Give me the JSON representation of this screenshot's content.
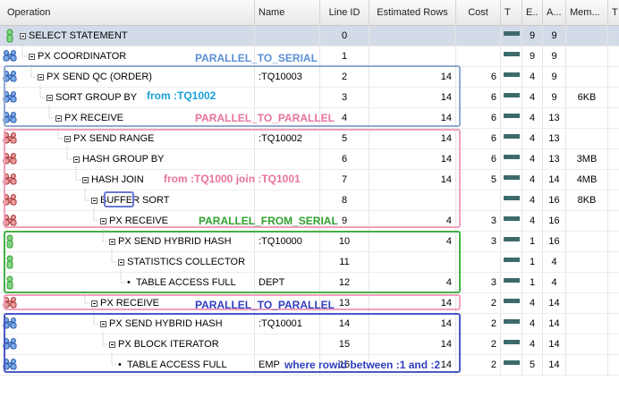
{
  "columns": {
    "operation": "Operation",
    "name": "Name",
    "line_id": "Line ID",
    "est_rows": "Estimated Rows",
    "cost": "Cost",
    "t": "T",
    "e": "E..",
    "a": "A...",
    "mem": "Mem...",
    "t2": "T"
  },
  "rows": [
    {
      "op": "SELECT STATEMENT",
      "name": "",
      "line": "0",
      "est": "",
      "cost": "",
      "bar": true,
      "e": "9",
      "a": "9",
      "mem": "",
      "icon": "green-single-icon"
    },
    {
      "op": "PX COORDINATOR",
      "name": "",
      "line": "1",
      "est": "",
      "cost": "",
      "bar": true,
      "e": "9",
      "a": "9",
      "mem": "",
      "icon": "blue-group-icon"
    },
    {
      "op": "PX SEND QC (ORDER)",
      "name": ":TQ10003",
      "line": "2",
      "est": "14",
      "cost": "6",
      "bar": true,
      "e": "4",
      "a": "9",
      "mem": "",
      "icon": "blue-group-icon"
    },
    {
      "op": "SORT GROUP BY",
      "name": "",
      "line": "3",
      "est": "14",
      "cost": "6",
      "bar": true,
      "e": "4",
      "a": "9",
      "mem": "6KB",
      "icon": "blue-group-icon"
    },
    {
      "op": "PX RECEIVE",
      "name": "",
      "line": "4",
      "est": "14",
      "cost": "6",
      "bar": true,
      "e": "4",
      "a": "13",
      "mem": "",
      "icon": "blue-group-icon"
    },
    {
      "op": "PX SEND RANGE",
      "name": ":TQ10002",
      "line": "5",
      "est": "14",
      "cost": "6",
      "bar": true,
      "e": "4",
      "a": "13",
      "mem": "",
      "icon": "red-group-icon"
    },
    {
      "op": "HASH GROUP BY",
      "name": "",
      "line": "6",
      "est": "14",
      "cost": "6",
      "bar": true,
      "e": "4",
      "a": "13",
      "mem": "3MB",
      "icon": "red-group-icon"
    },
    {
      "op": "HASH JOIN",
      "name": "",
      "line": "7",
      "est": "14",
      "cost": "5",
      "bar": true,
      "e": "4",
      "a": "14",
      "mem": "4MB",
      "icon": "red-group-icon"
    },
    {
      "op": "BUFFER SORT",
      "name": "",
      "line": "8",
      "est": "",
      "cost": "",
      "bar": true,
      "e": "4",
      "a": "16",
      "mem": "8KB",
      "icon": "red-group-icon"
    },
    {
      "op": "PX RECEIVE",
      "name": "",
      "line": "9",
      "est": "4",
      "cost": "3",
      "bar": true,
      "e": "4",
      "a": "16",
      "mem": "",
      "icon": "red-group-icon"
    },
    {
      "op": "PX SEND HYBRID HASH",
      "name": ":TQ10000",
      "line": "10",
      "est": "4",
      "cost": "3",
      "bar": true,
      "e": "1",
      "a": "16",
      "mem": "",
      "icon": "green-single-icon"
    },
    {
      "op": "STATISTICS COLLECTOR",
      "name": "",
      "line": "11",
      "est": "",
      "cost": "",
      "bar": true,
      "e": "1",
      "a": "4",
      "mem": "",
      "icon": "green-single-icon"
    },
    {
      "op": "TABLE ACCESS FULL",
      "name": "DEPT",
      "line": "12",
      "est": "4",
      "cost": "3",
      "bar": true,
      "e": "1",
      "a": "4",
      "mem": "",
      "icon": "green-single-icon"
    },
    {
      "op": "PX RECEIVE",
      "name": "",
      "line": "13",
      "est": "14",
      "cost": "2",
      "bar": true,
      "e": "4",
      "a": "14",
      "mem": "",
      "icon": "red-group-icon"
    },
    {
      "op": "PX SEND HYBRID HASH",
      "name": ":TQ10001",
      "line": "14",
      "est": "14",
      "cost": "2",
      "bar": true,
      "e": "4",
      "a": "14",
      "mem": "",
      "icon": "blue-group-icon"
    },
    {
      "op": "PX BLOCK ITERATOR",
      "name": "",
      "line": "15",
      "est": "14",
      "cost": "2",
      "bar": true,
      "e": "4",
      "a": "14",
      "mem": "",
      "icon": "blue-group-icon"
    },
    {
      "op": "TABLE ACCESS FULL",
      "name": "EMP",
      "line": "16",
      "est": "14",
      "cost": "2",
      "bar": true,
      "e": "5",
      "a": "14",
      "mem": "",
      "icon": "blue-group-icon"
    }
  ],
  "annotations": {
    "a1": "PARALLEL_TO_SERIAL",
    "a2": "from :TQ1002",
    "a3": "PARALLEL_TO_PARALLEL",
    "a4": "from :TQ1000 join :TQ1001",
    "a5": "PARALLEL_FROM_SERIAL",
    "a6": "PARALLEL_TO_PARALLEL",
    "a7": "where rowid between :1 and :2"
  },
  "colors": {
    "blue_annotation": "#5b8fd6",
    "pink_annotation": "#e8739a",
    "green_annotation": "#2fa02f",
    "navy_annotation": "#2f3fbf",
    "cyan_annotation": "#1a9fd8"
  }
}
